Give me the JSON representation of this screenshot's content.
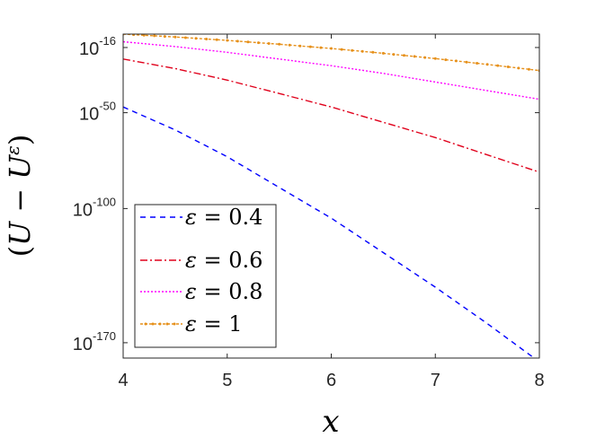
{
  "chart_data": {
    "type": "line",
    "title": "",
    "xlabel": "x",
    "ylabel": "(U − U^ε)",
    "ylabel_parts": {
      "open": "(",
      "u1": "U",
      "minus": " − ",
      "u2": "U",
      "sup": "ε",
      "close": ")"
    },
    "xlim": [
      4,
      8
    ],
    "ylim_log10": [
      -178,
      -9
    ],
    "y_scale": "log",
    "grid": false,
    "legend_position": "bottom-left",
    "x_ticks": [
      {
        "value": 4,
        "label": "4"
      },
      {
        "value": 5,
        "label": "5"
      },
      {
        "value": 6,
        "label": "6"
      },
      {
        "value": 7,
        "label": "7"
      },
      {
        "value": 8,
        "label": "8"
      }
    ],
    "y_ticks": [
      {
        "log10": -16,
        "base": "10",
        "exponent": "-16"
      },
      {
        "log10": -50,
        "base": "10",
        "exponent": "-50"
      },
      {
        "log10": -100,
        "base": "10",
        "exponent": "-100"
      },
      {
        "log10": -170,
        "base": "10",
        "exponent": "-170"
      }
    ],
    "series": [
      {
        "name": "ε = 0.4",
        "label_var": "ε",
        "label_rest": " = 0.4",
        "color": "#0000ff",
        "dash": "6,5",
        "markers": false,
        "x": [
          4,
          4.5,
          5,
          5.5,
          6,
          6.5,
          7,
          7.5,
          8
        ],
        "log10_y": [
          -47,
          -59,
          -73,
          -89,
          -105,
          -123,
          -141,
          -160,
          -180
        ]
      },
      {
        "name": "ε = 0.6",
        "label_var": "ε",
        "label_rest": " = 0.6",
        "color": "#e0001b",
        "dash": "8,3,2,3",
        "markers": false,
        "x": [
          4,
          4.5,
          5,
          5.5,
          6,
          6.5,
          7,
          7.5,
          8
        ],
        "log10_y": [
          -22,
          -27,
          -33,
          -40,
          -47,
          -55,
          -63,
          -72,
          -81
        ]
      },
      {
        "name": "ε = 0.8",
        "label_var": "ε",
        "label_rest": " = 0.8",
        "color": "#ff00ff",
        "dash": "2,2",
        "markers": false,
        "x": [
          4,
          4.5,
          5,
          5.5,
          6,
          6.5,
          7,
          7.5,
          8
        ],
        "log10_y": [
          -13,
          -15.5,
          -18.5,
          -22,
          -25.5,
          -29.5,
          -34,
          -38.5,
          -43
        ]
      },
      {
        "name": "ε = 1",
        "label_var": "ε",
        "label_rest": " = 1",
        "color": "#e6901a",
        "dash": "3,2",
        "markers": true,
        "x": [
          4,
          4.5,
          5,
          5.5,
          6,
          6.5,
          7,
          7.5,
          8
        ],
        "log10_y": [
          -9,
          -10.5,
          -12.3,
          -14.3,
          -16.5,
          -19,
          -21.8,
          -24.8,
          -28
        ]
      }
    ]
  }
}
